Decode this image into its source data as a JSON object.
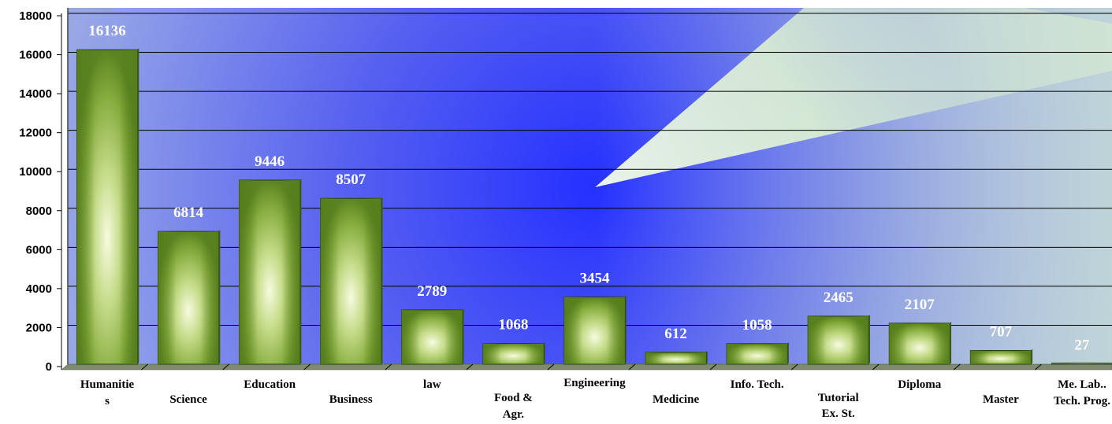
{
  "chart_data": {
    "type": "bar",
    "title": "",
    "xlabel": "",
    "ylabel": "",
    "ylim": [
      0,
      18000
    ],
    "yticks": [
      0,
      2000,
      4000,
      6000,
      8000,
      10000,
      12000,
      14000,
      16000,
      18000
    ],
    "grid": true,
    "legend": "none",
    "categories": [
      [
        "Humanitie",
        "s"
      ],
      [
        "Science"
      ],
      [
        "Education"
      ],
      [
        "Business"
      ],
      [
        "law"
      ],
      [
        "Food &",
        "Agr."
      ],
      [
        "Engineering"
      ],
      [
        "Medicine"
      ],
      [
        "Info. Tech."
      ],
      [
        "Tutorial",
        "Ex. St."
      ],
      [
        "Diploma"
      ],
      [
        "Master"
      ],
      [
        "Me. Lab..",
        "Tech. Prog."
      ]
    ],
    "values": [
      16136,
      6814,
      9446,
      8507,
      2789,
      1068,
      3454,
      612,
      1058,
      2465,
      2107,
      707,
      27
    ],
    "data_labels": [
      "16136",
      "6814",
      "9446",
      "8507",
      "2789",
      "1068",
      "3454",
      "612",
      "1058",
      "2465",
      "2107",
      "707",
      "27"
    ],
    "colors": {
      "bar": "#6e9a2a",
      "bar_highlight": "#f4f9d8",
      "bar_stroke": "#2a3a10",
      "plot_bg_blue": "#2e3cff",
      "plot_bg_light": "#eaffd0",
      "floor": "#7f8a70",
      "grid": "#000000"
    }
  }
}
